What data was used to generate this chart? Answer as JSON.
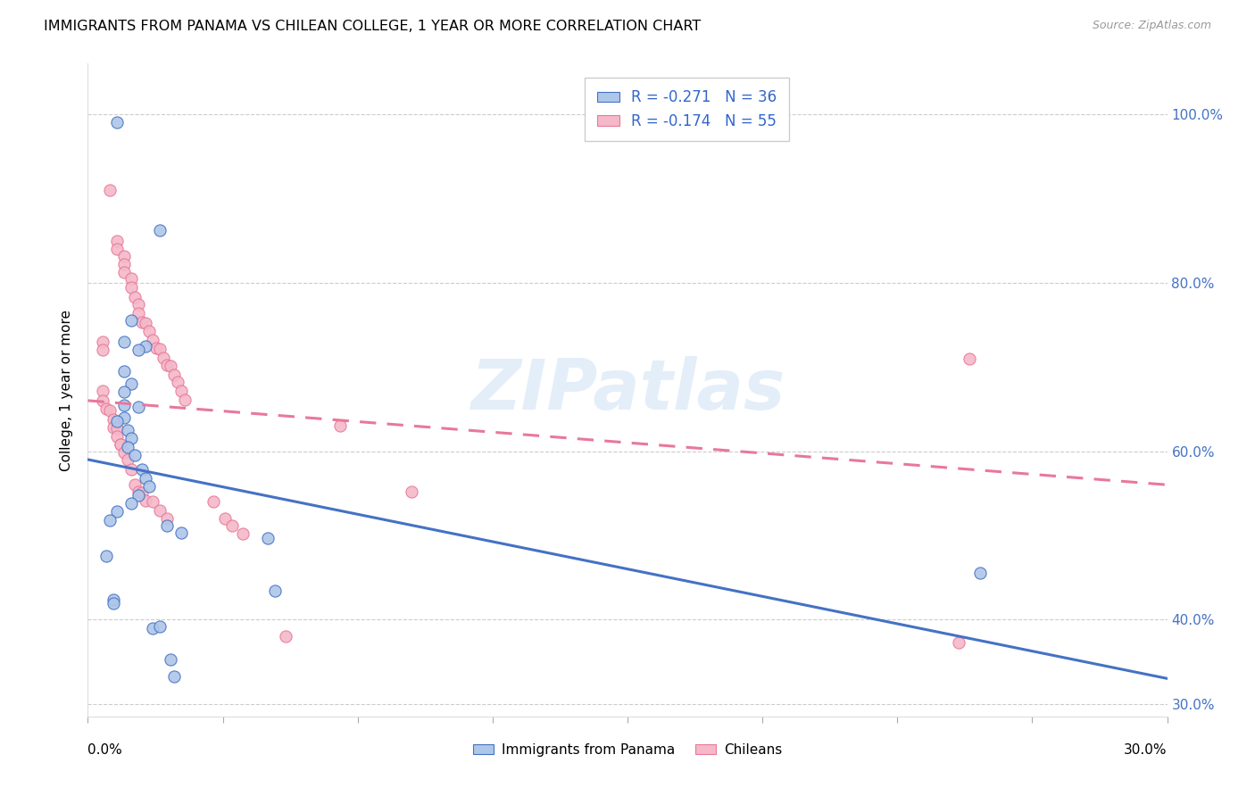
{
  "title": "IMMIGRANTS FROM PANAMA VS CHILEAN COLLEGE, 1 YEAR OR MORE CORRELATION CHART",
  "source": "Source: ZipAtlas.com",
  "ylabel": "College, 1 year or more",
  "right_yticks": [
    "100.0%",
    "80.0%",
    "60.0%",
    "40.0%",
    "30.0%"
  ],
  "right_ytick_vals": [
    1.0,
    0.8,
    0.6,
    0.4,
    0.3
  ],
  "legend_line1": "R = -0.271   N = 36",
  "legend_line2": "R = -0.174   N = 55",
  "panama_scatter_color": "#aec6e8",
  "chilean_scatter_color": "#f4b8c8",
  "panama_line_color": "#4472c4",
  "chilean_line_color": "#e8789a",
  "watermark": "ZIPatlas",
  "x_min": 0.0,
  "x_max": 0.3,
  "y_min": 0.285,
  "y_max": 1.06,
  "panama_points": [
    [
      0.008,
      0.99
    ],
    [
      0.02,
      0.862
    ],
    [
      0.016,
      0.725
    ],
    [
      0.012,
      0.755
    ],
    [
      0.014,
      0.72
    ],
    [
      0.01,
      0.73
    ],
    [
      0.01,
      0.695
    ],
    [
      0.012,
      0.68
    ],
    [
      0.01,
      0.67
    ],
    [
      0.01,
      0.655
    ],
    [
      0.014,
      0.652
    ],
    [
      0.01,
      0.64
    ],
    [
      0.008,
      0.635
    ],
    [
      0.011,
      0.625
    ],
    [
      0.012,
      0.615
    ],
    [
      0.011,
      0.605
    ],
    [
      0.013,
      0.595
    ],
    [
      0.015,
      0.578
    ],
    [
      0.016,
      0.568
    ],
    [
      0.017,
      0.558
    ],
    [
      0.014,
      0.548
    ],
    [
      0.012,
      0.538
    ],
    [
      0.008,
      0.528
    ],
    [
      0.006,
      0.518
    ],
    [
      0.022,
      0.512
    ],
    [
      0.026,
      0.503
    ],
    [
      0.005,
      0.476
    ],
    [
      0.007,
      0.424
    ],
    [
      0.007,
      0.419
    ],
    [
      0.05,
      0.497
    ],
    [
      0.052,
      0.434
    ],
    [
      0.018,
      0.39
    ],
    [
      0.02,
      0.392
    ],
    [
      0.023,
      0.353
    ],
    [
      0.024,
      0.332
    ],
    [
      0.248,
      0.455
    ]
  ],
  "chilean_points": [
    [
      0.006,
      0.91
    ],
    [
      0.008,
      0.85
    ],
    [
      0.008,
      0.84
    ],
    [
      0.01,
      0.832
    ],
    [
      0.01,
      0.822
    ],
    [
      0.01,
      0.812
    ],
    [
      0.012,
      0.805
    ],
    [
      0.012,
      0.794
    ],
    [
      0.013,
      0.783
    ],
    [
      0.014,
      0.774
    ],
    [
      0.014,
      0.764
    ],
    [
      0.015,
      0.753
    ],
    [
      0.016,
      0.752
    ],
    [
      0.017,
      0.742
    ],
    [
      0.018,
      0.732
    ],
    [
      0.019,
      0.722
    ],
    [
      0.02,
      0.721
    ],
    [
      0.021,
      0.711
    ],
    [
      0.022,
      0.702
    ],
    [
      0.023,
      0.701
    ],
    [
      0.024,
      0.691
    ],
    [
      0.025,
      0.682
    ],
    [
      0.026,
      0.672
    ],
    [
      0.027,
      0.661
    ],
    [
      0.004,
      0.73
    ],
    [
      0.004,
      0.72
    ],
    [
      0.004,
      0.672
    ],
    [
      0.004,
      0.66
    ],
    [
      0.005,
      0.65
    ],
    [
      0.006,
      0.648
    ],
    [
      0.007,
      0.638
    ],
    [
      0.007,
      0.628
    ],
    [
      0.008,
      0.627
    ],
    [
      0.008,
      0.618
    ],
    [
      0.009,
      0.608
    ],
    [
      0.009,
      0.608
    ],
    [
      0.01,
      0.598
    ],
    [
      0.011,
      0.59
    ],
    [
      0.012,
      0.578
    ],
    [
      0.013,
      0.56
    ],
    [
      0.014,
      0.552
    ],
    [
      0.015,
      0.551
    ],
    [
      0.016,
      0.541
    ],
    [
      0.018,
      0.54
    ],
    [
      0.02,
      0.53
    ],
    [
      0.022,
      0.52
    ],
    [
      0.035,
      0.54
    ],
    [
      0.038,
      0.52
    ],
    [
      0.04,
      0.512
    ],
    [
      0.043,
      0.502
    ],
    [
      0.07,
      0.63
    ],
    [
      0.055,
      0.38
    ],
    [
      0.09,
      0.552
    ],
    [
      0.245,
      0.71
    ],
    [
      0.242,
      0.373
    ]
  ],
  "panama_line_x": [
    0.0,
    0.3
  ],
  "panama_line_y": [
    0.59,
    0.33
  ],
  "chilean_line_x": [
    0.0,
    0.3
  ],
  "chilean_line_y": [
    0.66,
    0.56
  ]
}
